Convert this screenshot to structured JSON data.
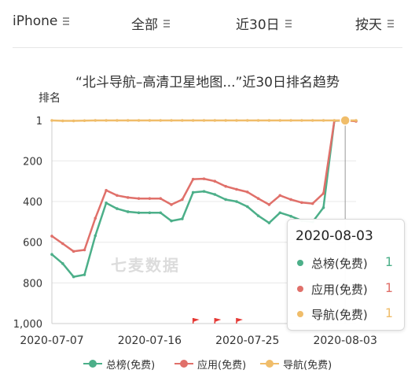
{
  "filters": [
    {
      "label": "iPhone",
      "icon": "menu-icon"
    },
    {
      "label": "全部",
      "icon": "menu-icon"
    },
    {
      "label": "近30日",
      "icon": "menu-icon"
    },
    {
      "label": "按天",
      "icon": "menu-icon"
    }
  ],
  "watermark": "七麦数据",
  "colors": {
    "overall": "#4caf89",
    "apps": "#e0706a",
    "navigation": "#f0bd6a",
    "axis": "#cccccc",
    "grid": "#e8e8e8",
    "marker_flag": "#e53935"
  },
  "tooltip": {
    "date": "2020-08-03",
    "rows": [
      {
        "name": "总榜(免费)",
        "value": "1"
      },
      {
        "name": "应用(免费)",
        "value": "1"
      },
      {
        "name": "导航(免费)",
        "value": "1"
      }
    ]
  },
  "chart_data": {
    "type": "line",
    "title": "“北斗导航–高清卫星地图...”近30日排名趋势",
    "ylabel": "排名",
    "y_inverted": true,
    "ylim": [
      1,
      1000
    ],
    "yticks": [
      "1",
      "200",
      "400",
      "600",
      "800",
      "1,000"
    ],
    "x_tick_labels": [
      "2020-07-07",
      "2020-07-16",
      "2020-07-25",
      "2020-08-03"
    ],
    "x": [
      "2020-07-07",
      "2020-07-08",
      "2020-07-09",
      "2020-07-10",
      "2020-07-11",
      "2020-07-12",
      "2020-07-13",
      "2020-07-14",
      "2020-07-15",
      "2020-07-16",
      "2020-07-17",
      "2020-07-18",
      "2020-07-19",
      "2020-07-20",
      "2020-07-21",
      "2020-07-22",
      "2020-07-23",
      "2020-07-24",
      "2020-07-25",
      "2020-07-26",
      "2020-07-27",
      "2020-07-28",
      "2020-07-29",
      "2020-07-30",
      "2020-07-31",
      "2020-08-01",
      "2020-08-02",
      "2020-08-03",
      "2020-08-04"
    ],
    "series": [
      {
        "name": "总榜(免费)",
        "key": "overall",
        "values": [
          660,
          705,
          770,
          760,
          568,
          407,
          435,
          450,
          455,
          455,
          455,
          495,
          485,
          355,
          350,
          365,
          390,
          400,
          425,
          470,
          505,
          455,
          472,
          494,
          500,
          430,
          3,
          1,
          3
        ]
      },
      {
        "name": "应用(免费)",
        "key": "apps",
        "values": [
          570,
          607,
          645,
          638,
          482,
          345,
          370,
          380,
          385,
          385,
          385,
          415,
          390,
          290,
          288,
          300,
          325,
          340,
          353,
          385,
          415,
          370,
          390,
          405,
          410,
          360,
          2,
          1,
          5
        ]
      },
      {
        "name": "导航(免费)",
        "key": "navigation",
        "values": [
          1,
          3,
          3,
          2,
          1,
          1,
          1,
          1,
          1,
          1,
          1,
          1,
          1,
          1,
          1,
          1,
          1,
          1,
          1,
          1,
          1,
          1,
          1,
          1,
          1,
          1,
          1,
          1,
          1
        ]
      }
    ],
    "grid": "horizontal",
    "legend_position": "bottom",
    "highlight_date": "2020-08-03",
    "event_markers": [
      "2020-07-20",
      "2020-07-22",
      "2020-07-24"
    ]
  }
}
